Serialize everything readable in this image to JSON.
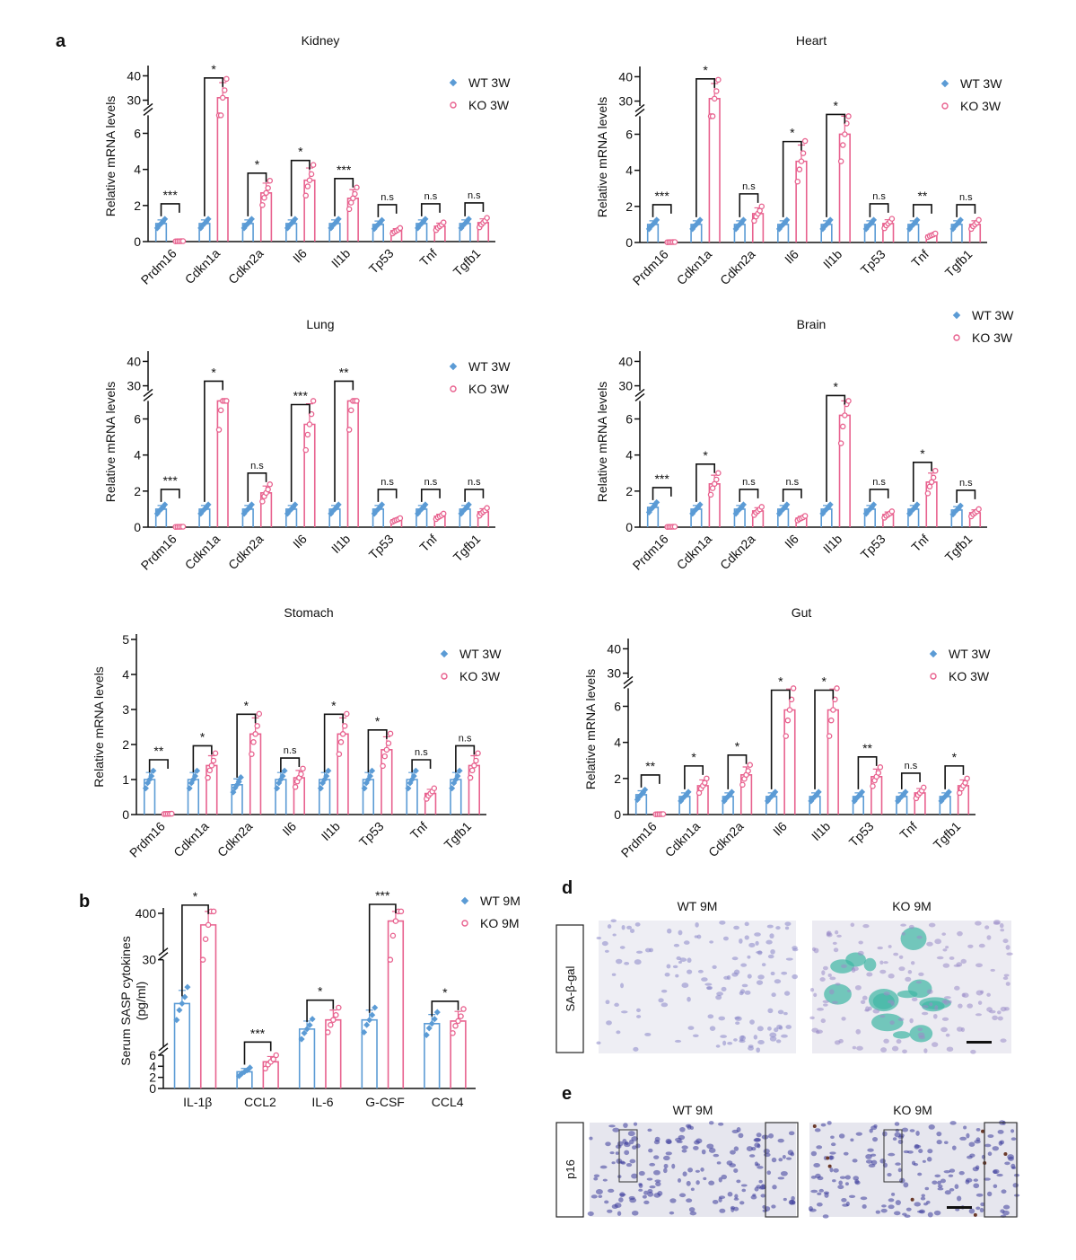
{
  "panel_labels": {
    "a": "a",
    "b": "b",
    "d": "d",
    "e": "e"
  },
  "colors": {
    "wt": "#5b9bd5",
    "ko": "#e8628f",
    "axis": "#111111"
  },
  "chart_data": [
    {
      "id": "kidney",
      "type": "bar",
      "title": "Kidney",
      "ylabel": "Relative mRNA levels",
      "ylim_segments": [
        [
          0,
          7
        ],
        [
          28,
          42
        ]
      ],
      "yticks": [
        0,
        2,
        4,
        6,
        30,
        40
      ],
      "categories": [
        "Prdm16",
        "Cdkn1a",
        "Cdkn2a",
        "Il6",
        "Il1b",
        "Tp53",
        "Tnf",
        "Tgfb1"
      ],
      "series": [
        {
          "name": "WT 3W",
          "values": [
            1.0,
            1.0,
            1.0,
            1.0,
            1.0,
            0.95,
            1.0,
            1.0
          ]
        },
        {
          "name": "KO 3W",
          "values": [
            0.02,
            31,
            2.7,
            3.4,
            2.4,
            0.6,
            0.85,
            1.05
          ]
        }
      ],
      "significance": [
        "***",
        "*",
        "*",
        "*",
        "***",
        "n.s",
        "n.s",
        "n.s"
      ],
      "legend": "top-right"
    },
    {
      "id": "heart",
      "type": "bar",
      "title": "Heart",
      "ylabel": "Relative mRNA levels",
      "ylim_segments": [
        [
          0,
          7
        ],
        [
          28,
          42
        ]
      ],
      "yticks": [
        0,
        2,
        4,
        6,
        30,
        40
      ],
      "categories": [
        "Prdm16",
        "Cdkn1a",
        "Cdkn2a",
        "Il6",
        "Il1b",
        "Tp53",
        "Tnf",
        "Tgfb1"
      ],
      "series": [
        {
          "name": "WT 3W",
          "values": [
            1.0,
            1.0,
            1.0,
            1.0,
            1.0,
            1.0,
            1.0,
            1.0
          ]
        },
        {
          "name": "KO 3W",
          "values": [
            0.02,
            31,
            1.6,
            4.5,
            6.0,
            1.05,
            0.4,
            1.0
          ]
        }
      ],
      "significance": [
        "***",
        "*",
        "n.s",
        "*",
        "*",
        "n.s",
        "**",
        "n.s"
      ],
      "legend": "top-right"
    },
    {
      "id": "lung",
      "type": "bar",
      "title": "Lung",
      "ylabel": "Relative mRNA levels",
      "ylim_segments": [
        [
          0,
          7
        ],
        [
          28,
          42
        ]
      ],
      "yticks": [
        0,
        2,
        4,
        6,
        30,
        40
      ],
      "categories": [
        "Prdm16",
        "Cdkn1a",
        "Cdkn2a",
        "Il6",
        "Il1b",
        "Tp53",
        "Tnf",
        "Tgfb1"
      ],
      "series": [
        {
          "name": "WT 3W",
          "values": [
            1.0,
            1.0,
            1.0,
            1.0,
            1.0,
            1.0,
            1.0,
            1.0
          ]
        },
        {
          "name": "KO 3W",
          "values": [
            0.02,
            7.2,
            1.9,
            5.7,
            7.2,
            0.4,
            0.6,
            0.85
          ]
        }
      ],
      "significance": [
        "***",
        "*",
        "n.s",
        "***",
        "**",
        "n.s",
        "n.s",
        "n.s"
      ],
      "legend": "top-right"
    },
    {
      "id": "brain",
      "type": "bar",
      "title": "Brain",
      "ylabel": "Relative mRNA levels",
      "ylim_segments": [
        [
          0,
          7
        ],
        [
          28,
          42
        ]
      ],
      "yticks": [
        0,
        2,
        4,
        6,
        30,
        40
      ],
      "categories": [
        "Prdm16",
        "Cdkn1a",
        "Cdkn2a",
        "Il6",
        "Il1b",
        "Tp53",
        "Tnf",
        "Tgfb1"
      ],
      "series": [
        {
          "name": "WT 3W",
          "values": [
            1.1,
            1.0,
            1.0,
            1.0,
            1.0,
            1.0,
            1.0,
            0.95
          ]
        },
        {
          "name": "KO 3W",
          "values": [
            0.02,
            2.4,
            0.9,
            0.5,
            6.2,
            0.7,
            2.5,
            0.8
          ]
        }
      ],
      "significance": [
        "***",
        "*",
        "n.s",
        "n.s",
        "*",
        "n.s",
        "*",
        "n.s"
      ],
      "legend": "top-right"
    },
    {
      "id": "stomach",
      "type": "bar",
      "title": "Stomach",
      "ylabel": "Relative mRNA levels",
      "ylim_segments": [
        [
          0,
          5
        ]
      ],
      "yticks": [
        0,
        1,
        2,
        3,
        4,
        5
      ],
      "categories": [
        "Prdm16",
        "Cdkn1a",
        "Cdkn2a",
        "Il6",
        "Il1b",
        "Tp53",
        "Tnf",
        "Tgfb1"
      ],
      "series": [
        {
          "name": "WT 3W",
          "values": [
            1.0,
            1.0,
            0.85,
            1.0,
            1.0,
            1.0,
            1.0,
            1.0
          ]
        },
        {
          "name": "KO 3W",
          "values": [
            0.02,
            1.4,
            2.3,
            1.05,
            2.3,
            1.85,
            0.6,
            1.4
          ]
        }
      ],
      "significance": [
        "**",
        "*",
        "*",
        "n.s",
        "*",
        "*",
        "n.s",
        "n.s"
      ],
      "legend": "top-right"
    },
    {
      "id": "gut",
      "type": "bar",
      "title": "Gut",
      "ylabel": "Relative mRNA levels",
      "ylim_segments": [
        [
          0,
          7
        ],
        [
          28,
          42
        ]
      ],
      "yticks": [
        0,
        2,
        4,
        6,
        30,
        40
      ],
      "categories": [
        "Prdm16",
        "Cdkn1a",
        "Cdkn2a",
        "Il6",
        "Il1b",
        "Tp53",
        "Tnf",
        "Tgfb1"
      ],
      "series": [
        {
          "name": "WT 3W",
          "values": [
            1.1,
            1.0,
            1.0,
            1.0,
            1.0,
            1.0,
            1.0,
            1.0
          ]
        },
        {
          "name": "KO 3W",
          "values": [
            0.02,
            1.6,
            2.2,
            5.8,
            5.8,
            2.1,
            1.2,
            1.6
          ]
        }
      ],
      "significance": [
        "**",
        "*",
        "*",
        "*",
        "*",
        "**",
        "n.s",
        "*"
      ],
      "legend": "top-right"
    },
    {
      "id": "sasp",
      "type": "bar",
      "title": "",
      "ylabel": "Serum SASP cytokines",
      "ylabel2": "(pg/ml)",
      "ylim_segments": [
        [
          0,
          6
        ],
        [
          6,
          30
        ],
        [
          300,
          400
        ]
      ],
      "yticks": [
        0,
        2,
        4,
        6,
        30,
        400
      ],
      "categories": [
        "IL-1β",
        "CCL2",
        "IL-6",
        "G-CSF",
        "CCL4"
      ],
      "series": [
        {
          "name": "WT 9M",
          "values": [
            18,
            3.0,
            11,
            13.5,
            12.5
          ]
        },
        {
          "name": "KO 9M",
          "values": [
            370,
            4.8,
            13.5,
            380,
            13.2
          ]
        }
      ],
      "significance": [
        "*",
        "***",
        "*",
        "***",
        "*"
      ],
      "legend": "top-right"
    }
  ],
  "panel_d": {
    "col_titles": [
      "WT 9M",
      "KO 9M"
    ],
    "row_label": "SA-β-gal"
  },
  "panel_e": {
    "col_titles": [
      "WT 9M",
      "KO 9M"
    ],
    "row_label": "p16"
  }
}
